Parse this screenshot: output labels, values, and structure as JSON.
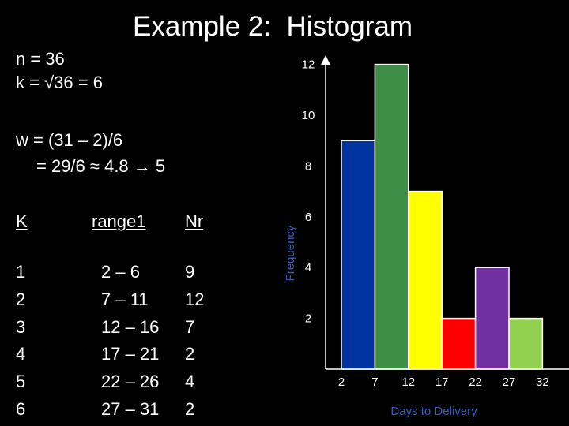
{
  "title": "Example 2:  Histogram",
  "stats": {
    "n": "n = 36",
    "k": "k = √36 = 6",
    "w1": "w = (31 – 2)/6",
    "w2": "= 29/6 ≈ 4.8 → 5"
  },
  "table": {
    "headers": {
      "k": "K",
      "range": "range1",
      "nr": "Nr"
    },
    "rows": [
      {
        "k": "1",
        "range": "2 – 6",
        "nr": "9"
      },
      {
        "k": "2",
        "range": "7 – 11",
        "nr": "12"
      },
      {
        "k": "3",
        "range": "12 – 16",
        "nr": "7"
      },
      {
        "k": "4",
        "range": "17 – 21",
        "nr": "2"
      },
      {
        "k": "5",
        "range": "22 – 26",
        "nr": "4"
      },
      {
        "k": "6",
        "range": "27 – 31",
        "nr": "2"
      }
    ]
  },
  "chart_data": {
    "type": "bar",
    "title": "",
    "xlabel": "Days to Delivery",
    "ylabel": "Frequency",
    "x_ticks": [
      "2",
      "7",
      "12",
      "17",
      "22",
      "27",
      "32"
    ],
    "y_ticks": [
      "2",
      "4",
      "6",
      "8",
      "10",
      "12"
    ],
    "bins": [
      [
        2,
        7
      ],
      [
        7,
        12
      ],
      [
        12,
        17
      ],
      [
        17,
        22
      ],
      [
        22,
        27
      ],
      [
        27,
        32
      ]
    ],
    "values": [
      9,
      12,
      7,
      2,
      4,
      2
    ],
    "colors": [
      "#0033a0",
      "#3f8e48",
      "#ffff00",
      "#ff0000",
      "#7030a0",
      "#92d050"
    ],
    "xlabel_color": "#2f5fc4",
    "ylim": [
      0,
      12
    ],
    "xlim": [
      2,
      32
    ],
    "grid": false
  }
}
